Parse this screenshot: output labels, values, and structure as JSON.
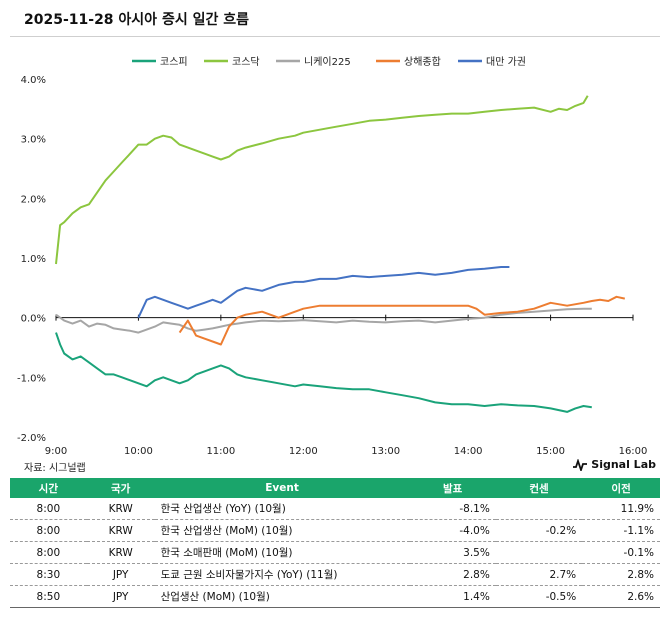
{
  "title": "2025-11-28 아시아 증시 일간 흐름",
  "source": "자료: 시그널랩",
  "brand": "Signal Lab",
  "chart_data": {
    "type": "line",
    "title": "2025-11-28 아시아 증시 일간 흐름",
    "xlabel": "",
    "ylabel": "",
    "xlim": [
      9,
      16
    ],
    "ylim": [
      -2.0,
      4.0
    ],
    "x_ticks": [
      "9:00",
      "10:00",
      "11:00",
      "12:00",
      "13:00",
      "14:00",
      "15:00",
      "16:00"
    ],
    "y_ticks": [
      "4.0%",
      "3.0%",
      "2.0%",
      "1.0%",
      "0.0%",
      "-1.0%",
      "-2.0%"
    ],
    "legend_position": "top",
    "series": [
      {
        "name": "코스피",
        "color": "#1aa37a",
        "x": [
          9.0,
          9.05,
          9.1,
          9.2,
          9.3,
          9.4,
          9.5,
          9.6,
          9.7,
          9.8,
          9.9,
          10.0,
          10.1,
          10.2,
          10.3,
          10.4,
          10.5,
          10.6,
          10.7,
          10.8,
          10.9,
          11.0,
          11.1,
          11.2,
          11.3,
          11.5,
          11.7,
          11.9,
          12.0,
          12.2,
          12.4,
          12.6,
          12.8,
          13.0,
          13.2,
          13.4,
          13.6,
          13.8,
          14.0,
          14.2,
          14.4,
          14.6,
          14.8,
          15.0,
          15.1,
          15.2,
          15.3,
          15.4,
          15.5
        ],
        "y": [
          -0.25,
          -0.45,
          -0.6,
          -0.7,
          -0.65,
          -0.75,
          -0.85,
          -0.95,
          -0.95,
          -1.0,
          -1.05,
          -1.1,
          -1.15,
          -1.05,
          -1.0,
          -1.05,
          -1.1,
          -1.05,
          -0.95,
          -0.9,
          -0.85,
          -0.8,
          -0.85,
          -0.95,
          -1.0,
          -1.05,
          -1.1,
          -1.15,
          -1.12,
          -1.15,
          -1.18,
          -1.2,
          -1.2,
          -1.25,
          -1.3,
          -1.35,
          -1.42,
          -1.45,
          -1.45,
          -1.48,
          -1.45,
          -1.47,
          -1.48,
          -1.52,
          -1.55,
          -1.58,
          -1.52,
          -1.48,
          -1.5
        ]
      },
      {
        "name": "코스닥",
        "color": "#8cc63f",
        "x": [
          9.0,
          9.05,
          9.1,
          9.2,
          9.3,
          9.4,
          9.5,
          9.6,
          9.7,
          9.8,
          9.9,
          10.0,
          10.1,
          10.2,
          10.3,
          10.4,
          10.5,
          10.6,
          10.7,
          10.8,
          10.9,
          11.0,
          11.1,
          11.2,
          11.3,
          11.5,
          11.7,
          11.9,
          12.0,
          12.2,
          12.4,
          12.6,
          12.8,
          13.0,
          13.2,
          13.4,
          13.6,
          13.8,
          14.0,
          14.2,
          14.4,
          14.6,
          14.8,
          15.0,
          15.1,
          15.2,
          15.3,
          15.4,
          15.45
        ],
        "y": [
          0.9,
          1.55,
          1.6,
          1.75,
          1.85,
          1.9,
          2.1,
          2.3,
          2.45,
          2.6,
          2.75,
          2.9,
          2.9,
          3.0,
          3.05,
          3.02,
          2.9,
          2.85,
          2.8,
          2.75,
          2.7,
          2.65,
          2.7,
          2.8,
          2.85,
          2.92,
          3.0,
          3.05,
          3.1,
          3.15,
          3.2,
          3.25,
          3.3,
          3.32,
          3.35,
          3.38,
          3.4,
          3.42,
          3.42,
          3.45,
          3.48,
          3.5,
          3.52,
          3.45,
          3.5,
          3.48,
          3.55,
          3.6,
          3.72
        ]
      },
      {
        "name": "니케이225",
        "color": "#a6a6a6",
        "x": [
          9.0,
          9.1,
          9.2,
          9.3,
          9.4,
          9.5,
          9.6,
          9.7,
          9.8,
          9.9,
          10.0,
          10.1,
          10.2,
          10.3,
          10.4,
          10.5,
          10.6,
          10.7,
          10.8,
          10.9,
          11.0,
          11.1,
          11.2,
          11.3,
          11.5,
          11.7,
          11.9,
          12.0,
          12.2,
          12.4,
          12.6,
          12.8,
          13.0,
          13.2,
          13.4,
          13.6,
          13.8,
          14.0,
          14.2,
          14.4,
          14.6,
          14.8,
          15.0,
          15.2,
          15.4,
          15.5
        ],
        "y": [
          0.05,
          -0.05,
          -0.1,
          -0.05,
          -0.15,
          -0.1,
          -0.12,
          -0.18,
          -0.2,
          -0.22,
          -0.25,
          -0.2,
          -0.15,
          -0.08,
          -0.1,
          -0.12,
          -0.18,
          -0.22,
          -0.2,
          -0.18,
          -0.15,
          -0.12,
          -0.1,
          -0.08,
          -0.05,
          -0.06,
          -0.05,
          -0.04,
          -0.06,
          -0.08,
          -0.05,
          -0.07,
          -0.08,
          -0.06,
          -0.05,
          -0.08,
          -0.05,
          -0.02,
          0.0,
          0.05,
          0.08,
          0.1,
          0.12,
          0.14,
          0.15,
          0.15
        ]
      },
      {
        "name": "상해종합",
        "color": "#ed7d31",
        "x": [
          10.5,
          10.6,
          10.7,
          10.8,
          10.9,
          11.0,
          11.1,
          11.2,
          11.3,
          11.5,
          11.7,
          11.9,
          12.0,
          12.2,
          12.4,
          12.6,
          12.8,
          13.0,
          13.2,
          13.4,
          13.6,
          13.8,
          14.0,
          14.1,
          14.2,
          14.4,
          14.6,
          14.8,
          15.0,
          15.2,
          15.4,
          15.5,
          15.6,
          15.7,
          15.8,
          15.9
        ],
        "y": [
          -0.25,
          -0.05,
          -0.3,
          -0.35,
          -0.4,
          -0.45,
          -0.15,
          0.0,
          0.05,
          0.1,
          0.0,
          0.1,
          0.15,
          0.2,
          0.2,
          0.2,
          0.2,
          0.2,
          0.2,
          0.2,
          0.2,
          0.2,
          0.2,
          0.15,
          0.05,
          0.08,
          0.1,
          0.15,
          0.25,
          0.2,
          0.25,
          0.28,
          0.3,
          0.28,
          0.35,
          0.32
        ]
      },
      {
        "name": "대만 가권",
        "color": "#4472c4",
        "x": [
          10.0,
          10.1,
          10.2,
          10.3,
          10.4,
          10.5,
          10.6,
          10.7,
          10.8,
          10.9,
          11.0,
          11.1,
          11.2,
          11.3,
          11.5,
          11.7,
          11.9,
          12.0,
          12.2,
          12.4,
          12.6,
          12.8,
          13.0,
          13.2,
          13.4,
          13.6,
          13.8,
          14.0,
          14.2,
          14.4,
          14.5
        ],
        "y": [
          0.0,
          0.3,
          0.35,
          0.3,
          0.25,
          0.2,
          0.15,
          0.2,
          0.25,
          0.3,
          0.25,
          0.35,
          0.45,
          0.5,
          0.45,
          0.55,
          0.6,
          0.6,
          0.65,
          0.65,
          0.7,
          0.68,
          0.7,
          0.72,
          0.75,
          0.72,
          0.75,
          0.8,
          0.82,
          0.85,
          0.85
        ]
      }
    ]
  },
  "table": {
    "headers": [
      "시간",
      "국가",
      "Event",
      "발표",
      "컨센",
      "이전"
    ],
    "rows": [
      [
        "8:00",
        "KRW",
        "한국 산업생산 (YoY) (10월)",
        "-8.1%",
        "",
        "11.9%"
      ],
      [
        "8:00",
        "KRW",
        "한국 산업생산 (MoM) (10월)",
        "-4.0%",
        "-0.2%",
        "-1.1%"
      ],
      [
        "8:00",
        "KRW",
        "한국 소매판매 (MoM) (10월)",
        "3.5%",
        "",
        "-0.1%"
      ],
      [
        "8:30",
        "JPY",
        "도쿄 근원 소비자물가지수 (YoY) (11월)",
        "2.8%",
        "2.7%",
        "2.8%"
      ],
      [
        "8:50",
        "JPY",
        "산업생산 (MoM) (10월)",
        "1.4%",
        "-0.5%",
        "2.6%"
      ]
    ]
  }
}
